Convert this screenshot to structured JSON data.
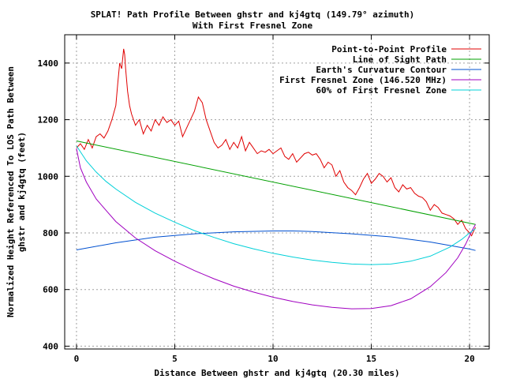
{
  "chart_data": {
    "type": "line",
    "title": "SPLAT! Path Profile Between ghstr and kj4gtq (149.79° azimuth)",
    "subtitle": "With First Fresnel Zone",
    "xlabel": "Distance Between ghstr and kj4gtq (20.30 miles)",
    "ylabel": "Normalized Height Referenced To LOS Path Between ghstr and kj4gtq (feet)",
    "ylabel_lines": [
      "Normalized Height Referenced To LOS Path Between",
      "ghstr and kj4gtq (feet)"
    ],
    "xlim": [
      -0.6,
      21.0
    ],
    "ylim": [
      390,
      1500
    ],
    "xticks": [
      0,
      5,
      10,
      15,
      20
    ],
    "xtick_labels": [
      "0",
      "5",
      "10",
      "15",
      "20"
    ],
    "yticks": [
      400,
      600,
      800,
      1000,
      1200,
      1400
    ],
    "ytick_labels": [
      "400",
      "600",
      "800",
      "1000",
      "1200",
      "1400"
    ],
    "grid": true,
    "legend_position": "top-right",
    "series": [
      {
        "name": "Point-to-Point Profile",
        "color": "#e00000",
        "x": [
          0.0,
          0.2,
          0.4,
          0.6,
          0.8,
          1.0,
          1.2,
          1.4,
          1.6,
          1.8,
          2.0,
          2.1,
          2.2,
          2.3,
          2.4,
          2.45,
          2.5,
          2.6,
          2.7,
          2.8,
          3.0,
          3.2,
          3.4,
          3.6,
          3.8,
          4.0,
          4.2,
          4.4,
          4.6,
          4.8,
          5.0,
          5.2,
          5.4,
          5.6,
          5.8,
          6.0,
          6.2,
          6.4,
          6.6,
          6.8,
          7.0,
          7.2,
          7.4,
          7.6,
          7.8,
          8.0,
          8.2,
          8.4,
          8.6,
          8.8,
          9.0,
          9.2,
          9.4,
          9.6,
          9.8,
          10.0,
          10.2,
          10.4,
          10.6,
          10.8,
          11.0,
          11.2,
          11.4,
          11.6,
          11.8,
          12.0,
          12.2,
          12.4,
          12.6,
          12.8,
          13.0,
          13.2,
          13.4,
          13.6,
          13.8,
          14.0,
          14.2,
          14.4,
          14.6,
          14.8,
          15.0,
          15.2,
          15.4,
          15.6,
          15.8,
          16.0,
          16.2,
          16.4,
          16.6,
          16.8,
          17.0,
          17.2,
          17.4,
          17.6,
          17.8,
          18.0,
          18.2,
          18.4,
          18.6,
          18.8,
          19.0,
          19.2,
          19.4,
          19.6,
          19.8,
          20.0,
          20.1,
          20.2,
          20.3
        ],
        "y": [
          1100,
          1115,
          1095,
          1130,
          1100,
          1140,
          1150,
          1135,
          1160,
          1200,
          1250,
          1330,
          1400,
          1380,
          1450,
          1430,
          1380,
          1300,
          1250,
          1220,
          1180,
          1200,
          1150,
          1180,
          1160,
          1200,
          1180,
          1210,
          1190,
          1200,
          1180,
          1195,
          1140,
          1170,
          1200,
          1230,
          1280,
          1260,
          1200,
          1160,
          1120,
          1100,
          1110,
          1130,
          1095,
          1120,
          1100,
          1140,
          1090,
          1120,
          1100,
          1080,
          1090,
          1085,
          1095,
          1080,
          1090,
          1100,
          1070,
          1060,
          1080,
          1050,
          1065,
          1080,
          1085,
          1075,
          1080,
          1060,
          1030,
          1050,
          1040,
          1000,
          1020,
          980,
          960,
          950,
          935,
          960,
          990,
          1010,
          975,
          990,
          1010,
          1000,
          980,
          995,
          960,
          945,
          970,
          955,
          960,
          940,
          930,
          925,
          910,
          880,
          900,
          890,
          870,
          865,
          860,
          850,
          830,
          845,
          815,
          800,
          790,
          805,
          820
        ]
      },
      {
        "name": "Line of Sight Path",
        "color": "#00a000",
        "x": [
          0.0,
          20.3
        ],
        "y": [
          1125,
          830
        ]
      },
      {
        "name": "Earth's Curvature Contour",
        "color": "#0050d0",
        "x": [
          0.0,
          2.0,
          4.0,
          6.0,
          8.0,
          10.0,
          11.0,
          12.0,
          14.0,
          16.0,
          18.0,
          20.0,
          20.3
        ],
        "y": [
          740,
          765,
          785,
          797,
          804,
          807,
          807,
          805,
          797,
          786,
          768,
          743,
          738
        ]
      },
      {
        "name": "First Fresnel Zone (146.520 MHz)",
        "color": "#a000c0",
        "x": [
          0.0,
          0.2,
          0.5,
          1.0,
          1.5,
          2.0,
          3.0,
          4.0,
          5.0,
          6.0,
          7.0,
          8.0,
          9.0,
          10.0,
          11.0,
          12.0,
          13.0,
          14.0,
          15.0,
          16.0,
          17.0,
          18.0,
          18.8,
          19.4,
          19.8,
          20.1,
          20.3
        ],
        "y": [
          1098,
          1030,
          980,
          920,
          880,
          840,
          782,
          737,
          700,
          667,
          638,
          612,
          591,
          573,
          558,
          546,
          537,
          532,
          533,
          543,
          567,
          610,
          660,
          712,
          760,
          805,
          830
        ]
      },
      {
        "name": "60% of First Fresnel Zone",
        "color": "#00d0d8",
        "x": [
          0.0,
          0.5,
          1.0,
          1.5,
          2.0,
          3.0,
          4.0,
          5.0,
          6.0,
          7.0,
          8.0,
          9.0,
          10.0,
          11.0,
          12.0,
          13.0,
          14.0,
          15.0,
          16.0,
          17.0,
          18.0,
          19.0,
          19.6,
          20.0,
          20.3
        ],
        "y": [
          1108,
          1055,
          1015,
          982,
          955,
          908,
          870,
          838,
          808,
          784,
          762,
          744,
          728,
          715,
          704,
          696,
          690,
          688,
          690,
          700,
          718,
          750,
          777,
          800,
          815
        ]
      }
    ]
  }
}
